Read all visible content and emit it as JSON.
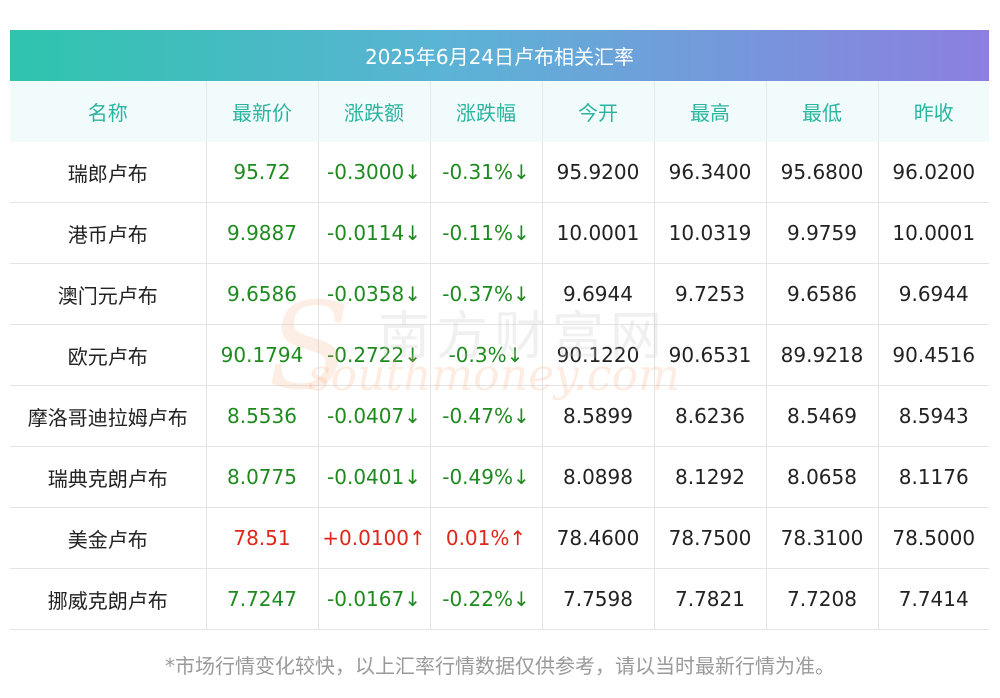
{
  "title": "2025年6月24日卢布相关汇率",
  "columns": [
    "名称",
    "最新价",
    "涨跌额",
    "涨跌幅",
    "今开",
    "最高",
    "最低",
    "昨收"
  ],
  "rows": [
    {
      "name": "瑞郎卢布",
      "latest": "95.72",
      "change": "-0.3000↓",
      "pct": "-0.31%↓",
      "open": "95.9200",
      "high": "96.3400",
      "low": "95.6800",
      "prev": "96.0200",
      "dir": "down"
    },
    {
      "name": "港币卢布",
      "latest": "9.9887",
      "change": "-0.0114↓",
      "pct": "-0.11%↓",
      "open": "10.0001",
      "high": "10.0319",
      "low": "9.9759",
      "prev": "10.0001",
      "dir": "down"
    },
    {
      "name": "澳门元卢布",
      "latest": "9.6586",
      "change": "-0.0358↓",
      "pct": "-0.37%↓",
      "open": "9.6944",
      "high": "9.7253",
      "low": "9.6586",
      "prev": "9.6944",
      "dir": "down"
    },
    {
      "name": "欧元卢布",
      "latest": "90.1794",
      "change": "-0.2722↓",
      "pct": "-0.3%↓",
      "open": "90.1220",
      "high": "90.6531",
      "low": "89.9218",
      "prev": "90.4516",
      "dir": "down"
    },
    {
      "name": "摩洛哥迪拉姆卢布",
      "latest": "8.5536",
      "change": "-0.0407↓",
      "pct": "-0.47%↓",
      "open": "8.5899",
      "high": "8.6236",
      "low": "8.5469",
      "prev": "8.5943",
      "dir": "down"
    },
    {
      "name": "瑞典克朗卢布",
      "latest": "8.0775",
      "change": "-0.0401↓",
      "pct": "-0.49%↓",
      "open": "8.0898",
      "high": "8.1292",
      "low": "8.0658",
      "prev": "8.1176",
      "dir": "down"
    },
    {
      "name": "美金卢布",
      "latest": "78.51",
      "change": "+0.0100↑",
      "pct": "0.01%↑",
      "open": "78.4600",
      "high": "78.7500",
      "low": "78.3100",
      "prev": "78.5000",
      "dir": "up"
    },
    {
      "name": "挪威克朗卢布",
      "latest": "7.7247",
      "change": "-0.0167↓",
      "pct": "-0.22%↓",
      "open": "7.7598",
      "high": "7.7821",
      "low": "7.7208",
      "prev": "7.7414",
      "dir": "down"
    }
  ],
  "watermark": {
    "cn": "南方财富网",
    "en": "southmoney.com",
    "s": "S"
  },
  "footnote": "*市场行情变化较快，以上汇率行情数据仅供参考，请以当时最新行情为准。",
  "colors": {
    "up": "#e0261a",
    "down": "#1f8a1f",
    "header_text": "#2bb5a0",
    "title_gradient_start": "#2ec4ad",
    "title_gradient_end": "#8c7fe0"
  }
}
